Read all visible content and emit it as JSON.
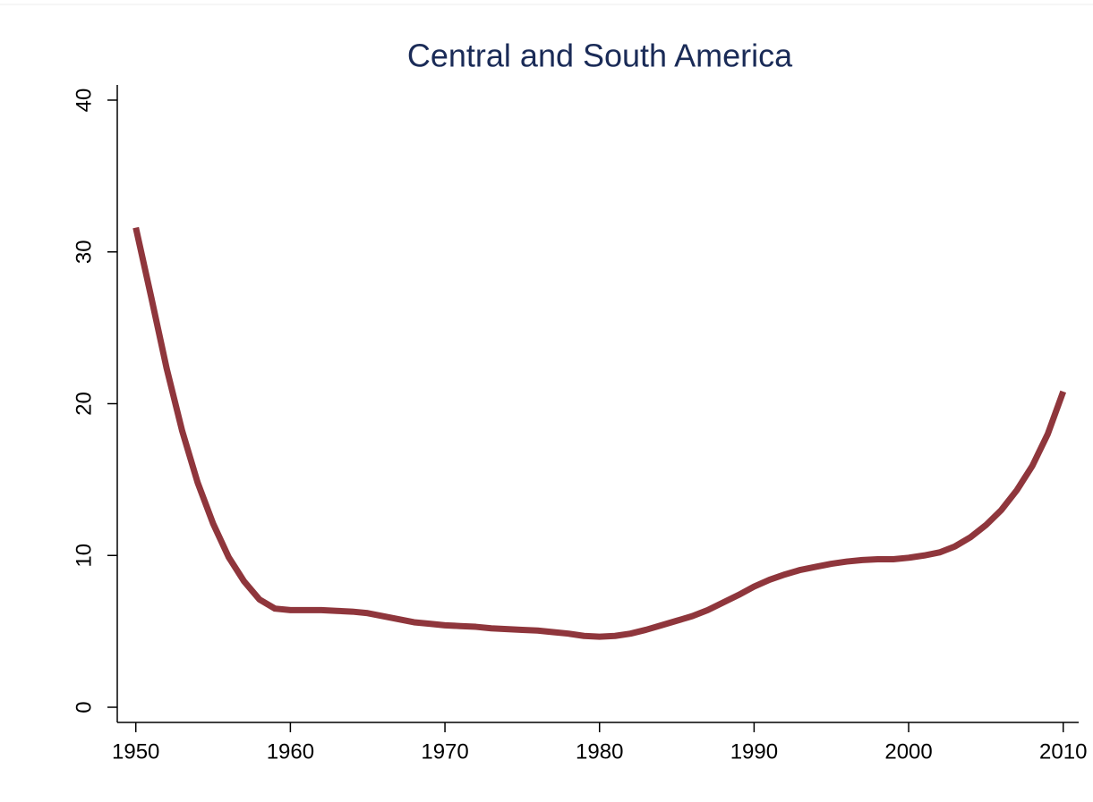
{
  "chart_data": {
    "type": "line",
    "title": "Central and South America",
    "x": [
      1950,
      1951,
      1952,
      1953,
      1954,
      1955,
      1956,
      1957,
      1958,
      1959,
      1960,
      1961,
      1962,
      1963,
      1964,
      1965,
      1966,
      1967,
      1968,
      1969,
      1970,
      1971,
      1972,
      1973,
      1974,
      1975,
      1976,
      1977,
      1978,
      1979,
      1980,
      1981,
      1982,
      1983,
      1984,
      1985,
      1986,
      1987,
      1988,
      1989,
      1990,
      1991,
      1992,
      1993,
      1994,
      1995,
      1996,
      1997,
      1998,
      1999,
      2000,
      2001,
      2002,
      2003,
      2004,
      2005,
      2006,
      2007,
      2008,
      2009,
      2010
    ],
    "series": [
      {
        "color": "#8f363c",
        "values": [
          31.6,
          27,
          22.3,
          18.2,
          14.8,
          12.1,
          9.9,
          8.3,
          7.1,
          6.5,
          6.4,
          6.4,
          6.4,
          6.35,
          6.3,
          6.2,
          6.0,
          5.8,
          5.6,
          5.5,
          5.4,
          5.35,
          5.3,
          5.2,
          5.15,
          5.1,
          5.05,
          4.95,
          4.85,
          4.7,
          4.65,
          4.7,
          4.85,
          5.1,
          5.4,
          5.7,
          6.0,
          6.4,
          6.9,
          7.4,
          7.95,
          8.4,
          8.75,
          9.05,
          9.25,
          9.45,
          9.6,
          9.7,
          9.75,
          9.75,
          9.85,
          10.0,
          10.2,
          10.6,
          11.2,
          12.0,
          13.0,
          14.3,
          15.9,
          18.0,
          20.8
        ]
      }
    ],
    "xlim": [
      1948.8,
      2011
    ],
    "xticks": [
      1950,
      1960,
      1970,
      1980,
      1990,
      2000,
      2010
    ],
    "ylim": [
      -1,
      41
    ],
    "yticks": [
      0,
      10,
      20,
      30,
      40
    ],
    "grid": false
  }
}
